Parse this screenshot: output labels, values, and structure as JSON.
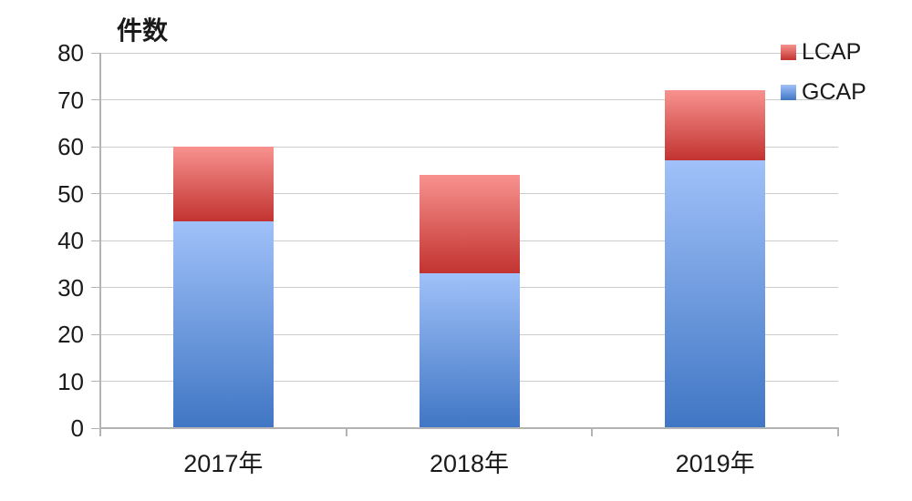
{
  "chart_data": {
    "type": "bar",
    "stacked": true,
    "title": "",
    "ylabel": "件数",
    "xlabel": "",
    "categories": [
      "2017年",
      "2018年",
      "2019年"
    ],
    "series": [
      {
        "name": "GCAP",
        "values": [
          44,
          33,
          57
        ],
        "gradient_top": "#a0c1f9",
        "gradient_bottom": "#4076c4"
      },
      {
        "name": "LCAP",
        "values": [
          16,
          21,
          15
        ],
        "gradient_top": "#f8928f",
        "gradient_bottom": "#c23330"
      }
    ],
    "ylim": [
      0,
      80
    ],
    "ytick_step": 10,
    "yticks": [
      "0",
      "10",
      "20",
      "30",
      "40",
      "50",
      "60",
      "70",
      "80"
    ],
    "grid": true,
    "legend": {
      "position": "top-right",
      "items": [
        "LCAP",
        "GCAP"
      ]
    },
    "colors": {
      "grid": "#cccccc",
      "axis": "#b3b3b3",
      "text": "#1a1a1a",
      "background": "#ffffff"
    }
  }
}
